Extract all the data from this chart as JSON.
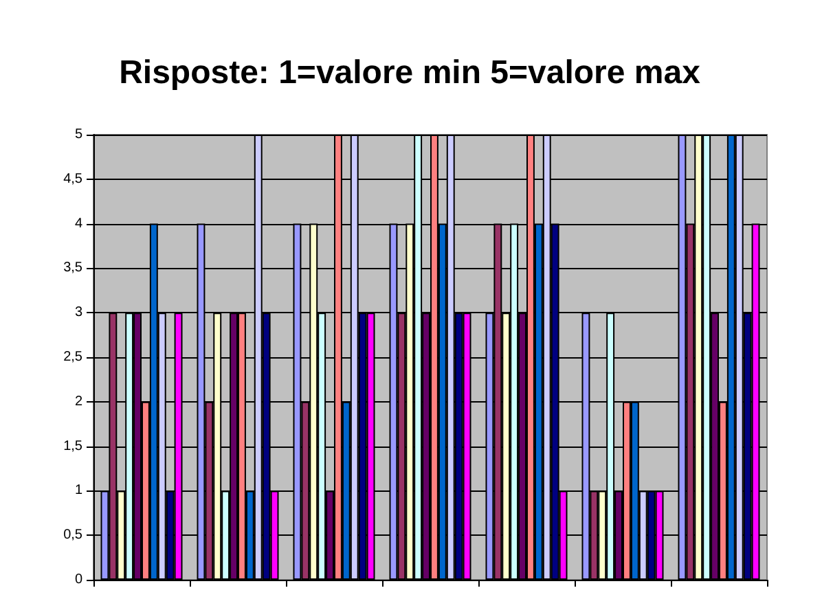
{
  "chart_data": {
    "type": "bar",
    "title": "Risposte: 1=valore min 5=valore max",
    "categories": [
      null,
      null,
      null,
      null,
      null,
      null,
      null
    ],
    "series": [
      {
        "color": "#9999ff",
        "values": [
          1,
          4,
          4,
          4,
          3,
          3,
          5
        ]
      },
      {
        "color": "#993366",
        "values": [
          3,
          2,
          2,
          3,
          4,
          1,
          4
        ]
      },
      {
        "color": "#ffffcc",
        "values": [
          1,
          3,
          4,
          4,
          3,
          1,
          5
        ]
      },
      {
        "color": "#ccffff",
        "values": [
          3,
          1,
          3,
          5,
          4,
          3,
          5
        ]
      },
      {
        "color": "#660066",
        "values": [
          3,
          3,
          1,
          3,
          3,
          1,
          3
        ]
      },
      {
        "color": "#ff8080",
        "values": [
          2,
          3,
          5,
          5,
          5,
          2,
          2
        ]
      },
      {
        "color": "#0066cc",
        "values": [
          4,
          1,
          2,
          4,
          4,
          2,
          5
        ]
      },
      {
        "color": "#ccccff",
        "values": [
          3,
          5,
          5,
          5,
          5,
          1,
          5
        ]
      },
      {
        "color": "#000080",
        "values": [
          1,
          3,
          3,
          3,
          4,
          1,
          3
        ]
      },
      {
        "color": "#ff00ff",
        "values": [
          3,
          1,
          3,
          3,
          1,
          1,
          4
        ]
      }
    ],
    "ylim": [
      0,
      5
    ],
    "yticks": [
      0,
      {
        "value": 0.5,
        "label": "0,5"
      },
      1,
      {
        "value": 1.5,
        "label": "1,5"
      },
      2,
      {
        "value": 2.5,
        "label": "2,5"
      },
      3,
      {
        "value": 3.5,
        "label": "3,5"
      },
      4,
      {
        "value": 4.5,
        "label": "4,5"
      },
      5
    ],
    "grid": "y"
  }
}
